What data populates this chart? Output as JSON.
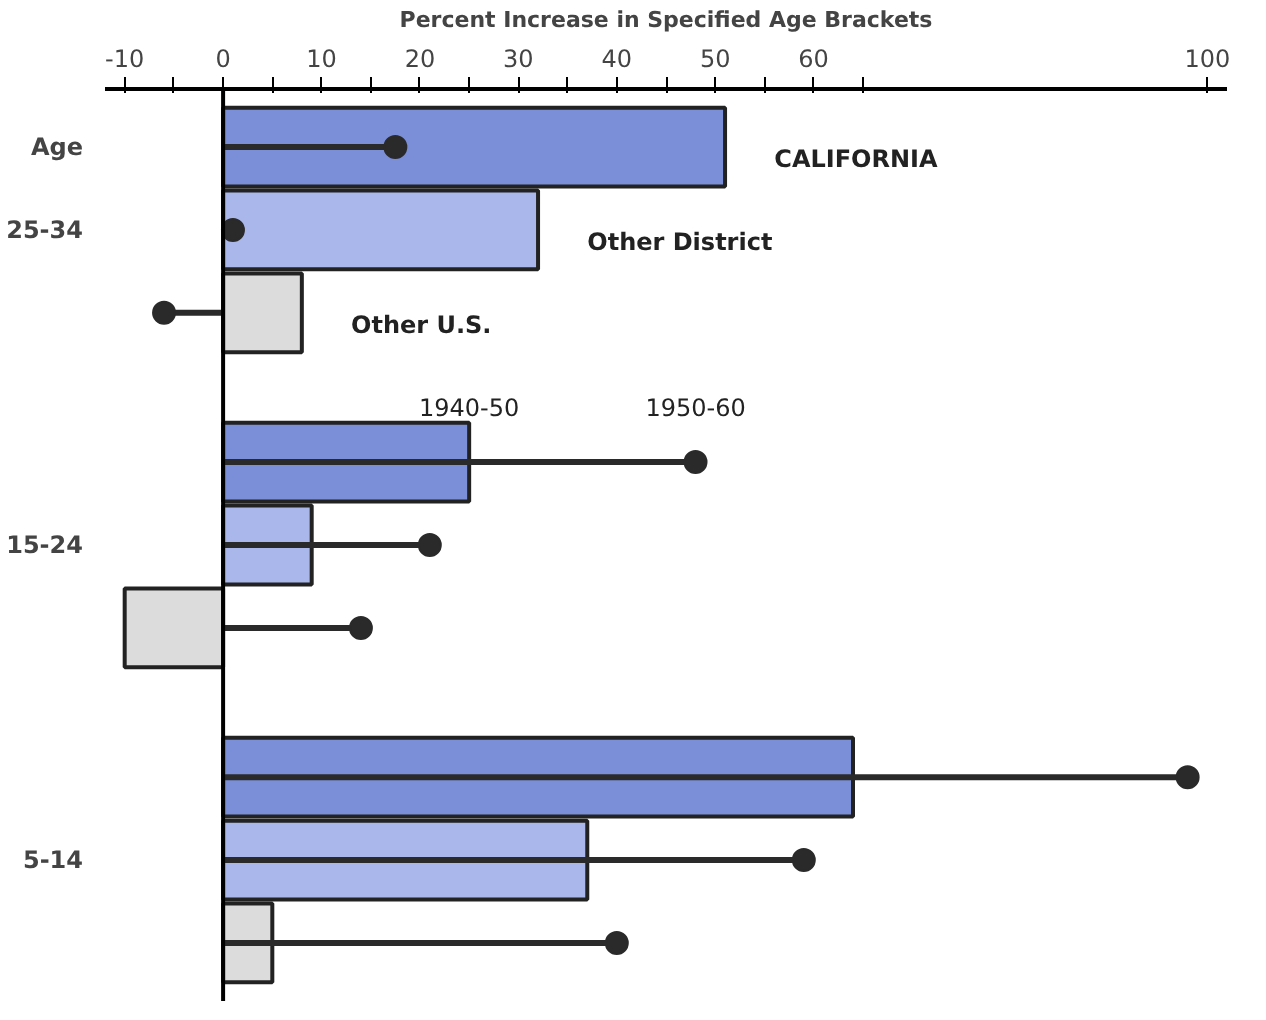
{
  "chart_data": {
    "type": "bar",
    "orientation": "horizontal",
    "xlabel": "Percent Increase in Specified Age Brackets",
    "categories": [
      "Age",
      "25-34",
      null,
      null,
      "15-24",
      null,
      null,
      "5-14",
      null
    ],
    "series": [
      {
        "name": "1940-50",
        "colors": [
          "#7b8fd8",
          "#a9b7ea",
          "#dcdcdc",
          "#7b8fd8",
          "#a9b7ea",
          "#dcdcdc",
          "#7b8fd8",
          "#a9b7ea",
          "#dcdcdc"
        ],
        "values": [
          51,
          32,
          8,
          25,
          9,
          -10,
          64,
          37,
          5
        ]
      },
      {
        "name": "1950-60",
        "type": "lollipop",
        "color": "#2a2a2a",
        "values": [
          17.5,
          1,
          -6,
          48,
          21,
          14,
          98,
          59,
          40
        ]
      }
    ],
    "annotations": [
      "CALIFORNIA",
      "Other District",
      "Other U.S."
    ],
    "xlim": [
      -12,
      102
    ],
    "xticks": [
      -10,
      {
        "value": -5,
        "label": null
      },
      0,
      {
        "value": 5,
        "label": null
      },
      10,
      {
        "value": 15,
        "label": null
      },
      20,
      {
        "value": 25,
        "label": null
      },
      30,
      {
        "value": 35,
        "label": null
      },
      40,
      {
        "value": 45,
        "label": null
      },
      50,
      {
        "value": 55,
        "label": null
      },
      60,
      {
        "value": 65,
        "label": null
      },
      100
    ],
    "ref_lines": [
      {
        "axis": "x",
        "value": 0
      }
    ],
    "grid": false,
    "marker": "circle"
  }
}
